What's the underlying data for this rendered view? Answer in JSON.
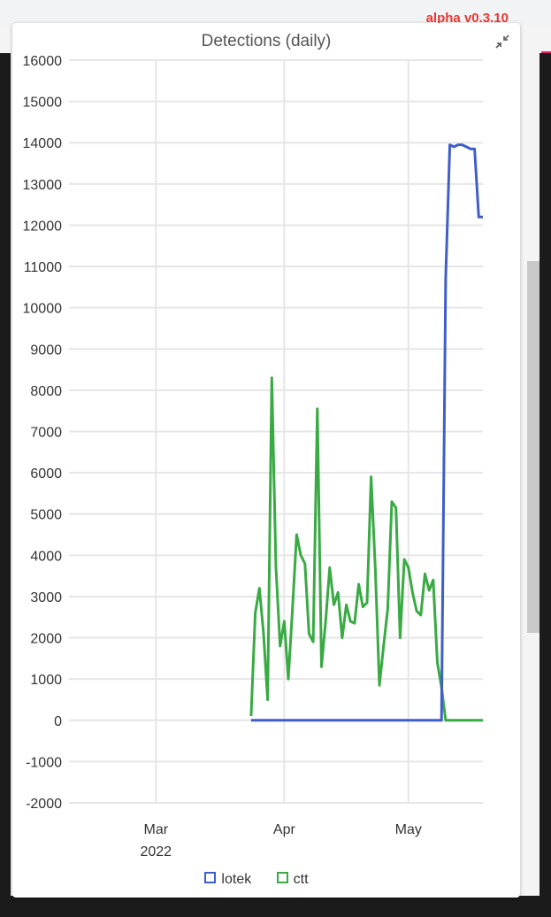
{
  "app": {
    "version": "alpha v0.3.10"
  },
  "chart_data": {
    "type": "line",
    "title": "Detections (daily)",
    "xlabel": "",
    "ylabel": "",
    "ylim": [
      -2000,
      16000
    ],
    "yticks": [
      -2000,
      -1000,
      0,
      1000,
      2000,
      3000,
      4000,
      5000,
      6000,
      7000,
      8000,
      9000,
      10000,
      11000,
      12000,
      13000,
      14000,
      15000,
      16000
    ],
    "xlim": [
      "2022-02-08",
      "2022-05-19"
    ],
    "xticks": [
      {
        "date": "2022-03-01",
        "label": "Mar"
      },
      {
        "date": "2022-04-01",
        "label": "Apr"
      },
      {
        "date": "2022-05-01",
        "label": "May"
      }
    ],
    "xyear_label": "2022",
    "grid": true,
    "legend_position": "bottom",
    "series": [
      {
        "name": "lotek",
        "color": "#3f5ec7",
        "x": [
          "2022-03-24",
          "2022-05-09",
          "2022-05-10",
          "2022-05-11",
          "2022-05-12",
          "2022-05-13",
          "2022-05-14",
          "2022-05-15",
          "2022-05-16",
          "2022-05-17",
          "2022-05-18",
          "2022-05-19"
        ],
        "y": [
          0,
          0,
          10700,
          13950,
          13900,
          13950,
          13950,
          13900,
          13850,
          13850,
          12200,
          12200
        ]
      },
      {
        "name": "ctt",
        "color": "#3aaa44",
        "x": [
          "2022-03-24",
          "2022-03-25",
          "2022-03-26",
          "2022-03-27",
          "2022-03-28",
          "2022-03-29",
          "2022-03-30",
          "2022-03-31",
          "2022-04-01",
          "2022-04-02",
          "2022-04-03",
          "2022-04-04",
          "2022-04-05",
          "2022-04-06",
          "2022-04-07",
          "2022-04-08",
          "2022-04-09",
          "2022-04-10",
          "2022-04-11",
          "2022-04-12",
          "2022-04-13",
          "2022-04-14",
          "2022-04-15",
          "2022-04-16",
          "2022-04-17",
          "2022-04-18",
          "2022-04-19",
          "2022-04-20",
          "2022-04-21",
          "2022-04-22",
          "2022-04-23",
          "2022-04-24",
          "2022-04-25",
          "2022-04-26",
          "2022-04-27",
          "2022-04-28",
          "2022-04-29",
          "2022-04-30",
          "2022-05-01",
          "2022-05-02",
          "2022-05-03",
          "2022-05-04",
          "2022-05-05",
          "2022-05-06",
          "2022-05-07",
          "2022-05-08",
          "2022-05-09",
          "2022-05-10",
          "2022-05-11",
          "2022-05-12",
          "2022-05-13",
          "2022-05-14",
          "2022-05-15",
          "2022-05-16",
          "2022-05-17",
          "2022-05-18",
          "2022-05-19"
        ],
        "y": [
          100,
          2600,
          3200,
          2100,
          500,
          8300,
          3700,
          1800,
          2400,
          1000,
          2700,
          4500,
          4000,
          3800,
          2100,
          1900,
          7550,
          1300,
          2400,
          3700,
          2800,
          3100,
          2000,
          2800,
          2400,
          2350,
          3300,
          2750,
          2850,
          5900,
          3700,
          850,
          1800,
          2700,
          5300,
          5150,
          2000,
          3900,
          3700,
          3100,
          2650,
          2550,
          3550,
          3150,
          3400,
          1400,
          800,
          0,
          0,
          0,
          0,
          0,
          0,
          0,
          0,
          0,
          0
        ]
      }
    ]
  }
}
